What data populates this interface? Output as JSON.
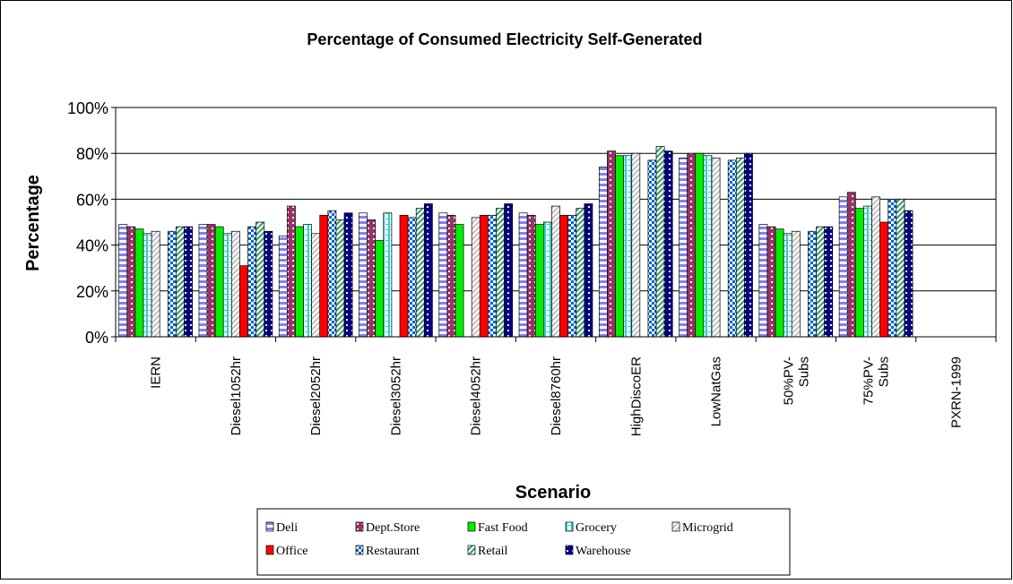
{
  "chart_data": {
    "type": "bar",
    "title": "Percentage of Consumed Electricity Self-Generated",
    "xlabel": "Scenario",
    "ylabel": "Percentage",
    "ylim": [
      0,
      100
    ],
    "ytick_labels": [
      "0%",
      "20%",
      "40%",
      "60%",
      "80%",
      "100%"
    ],
    "grid": true,
    "legend_position": "bottom",
    "categories": [
      [
        "IERN"
      ],
      [
        "Diesel1052hr"
      ],
      [
        "Diesel2052hr"
      ],
      [
        "Diesel3052hr"
      ],
      [
        "Diesel4052hr"
      ],
      [
        "Diesel8760hr"
      ],
      [
        "HighDiscoER"
      ],
      [
        "LowNatGas"
      ],
      [
        "50%PV-",
        "Subs"
      ],
      [
        "75%PV-",
        "Subs"
      ],
      [
        "PXRN-1999"
      ]
    ],
    "series": [
      {
        "name": "Deli",
        "color": "#8080ff",
        "pattern": "hstripe",
        "values": [
          49,
          49,
          44,
          54,
          54,
          54,
          74,
          78,
          49,
          61,
          null
        ]
      },
      {
        "name": "Dept.Store",
        "color": "#993366",
        "pattern": "dots",
        "values": [
          48,
          49,
          57,
          51,
          53,
          53,
          81,
          80,
          48,
          63,
          null
        ]
      },
      {
        "name": "Fast Food",
        "color": "#00ee00",
        "pattern": "solid",
        "values": [
          47,
          48,
          48,
          42,
          49,
          49,
          79,
          80,
          47,
          56,
          null
        ]
      },
      {
        "name": "Grocery",
        "color": "#33cccc",
        "pattern": "hatch",
        "values": [
          45,
          45,
          49,
          54,
          0,
          50,
          79,
          79,
          45,
          57,
          null
        ]
      },
      {
        "name": "Microgrid",
        "color": "#c0c0c0",
        "pattern": "diag",
        "values": [
          46,
          46,
          45,
          0,
          52,
          57,
          80,
          78,
          46,
          61,
          null
        ]
      },
      {
        "name": "Office",
        "color": "#ff0000",
        "pattern": "solid",
        "values": [
          0,
          31,
          53,
          53,
          53,
          53,
          0,
          0,
          0,
          50,
          null
        ]
      },
      {
        "name": "Restaurant",
        "color": "#0066cc",
        "pattern": "check",
        "values": [
          46,
          48,
          55,
          52,
          53,
          53,
          77,
          77,
          46,
          60,
          null
        ]
      },
      {
        "name": "Retail",
        "color": "#339966",
        "pattern": "diag",
        "values": [
          48,
          50,
          51,
          56,
          56,
          56,
          83,
          78,
          48,
          60,
          null
        ]
      },
      {
        "name": "Warehouse",
        "color": "#000080",
        "pattern": "dots",
        "values": [
          48,
          46,
          54,
          58,
          58,
          58,
          81,
          80,
          48,
          55,
          null
        ]
      }
    ]
  }
}
